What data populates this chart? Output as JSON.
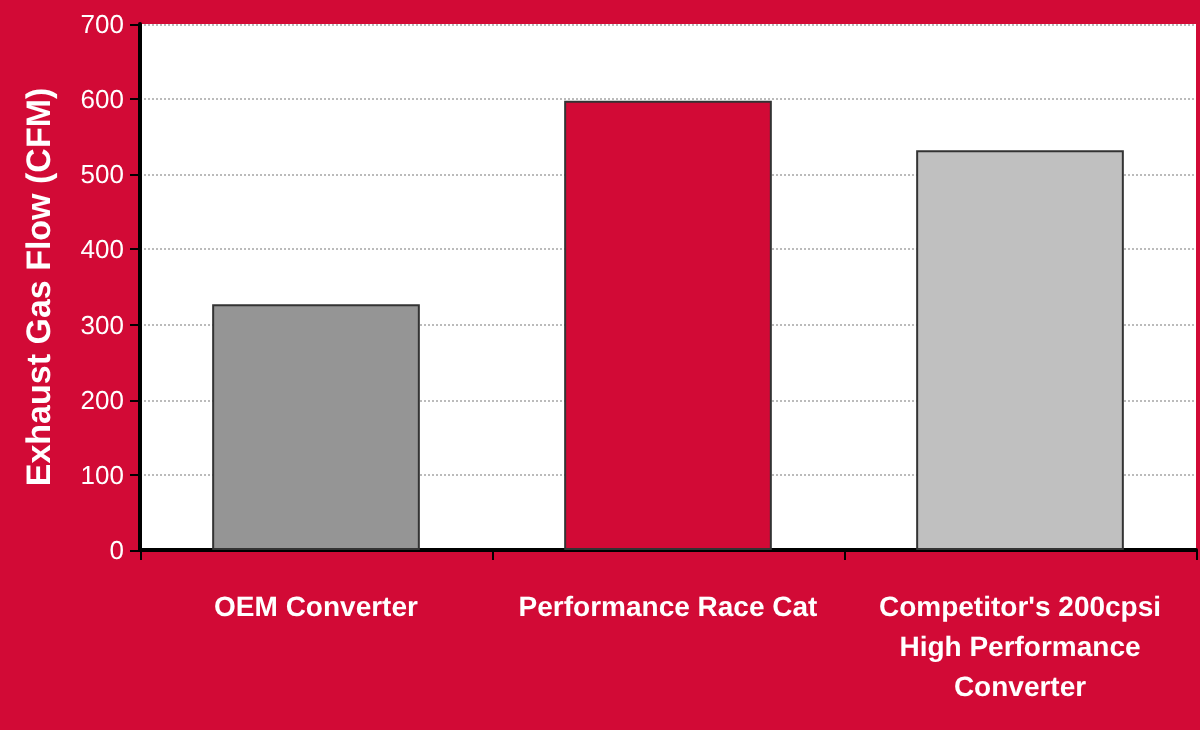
{
  "chart_data": {
    "type": "bar",
    "ylabel": "Exhaust Gas Flow (CFM)",
    "categories": [
      "OEM Converter",
      "Performance Race Cat",
      "Competitor's 200cpsi\nHigh Performance\nConverter"
    ],
    "values": [
      327,
      598,
      532
    ],
    "colors": [
      "#959595",
      "#d20a36",
      "#c0c0c0"
    ],
    "ylim": [
      0,
      700
    ],
    "yticks": [
      0,
      100,
      200,
      300,
      400,
      500,
      600,
      700
    ],
    "grid": "y"
  }
}
